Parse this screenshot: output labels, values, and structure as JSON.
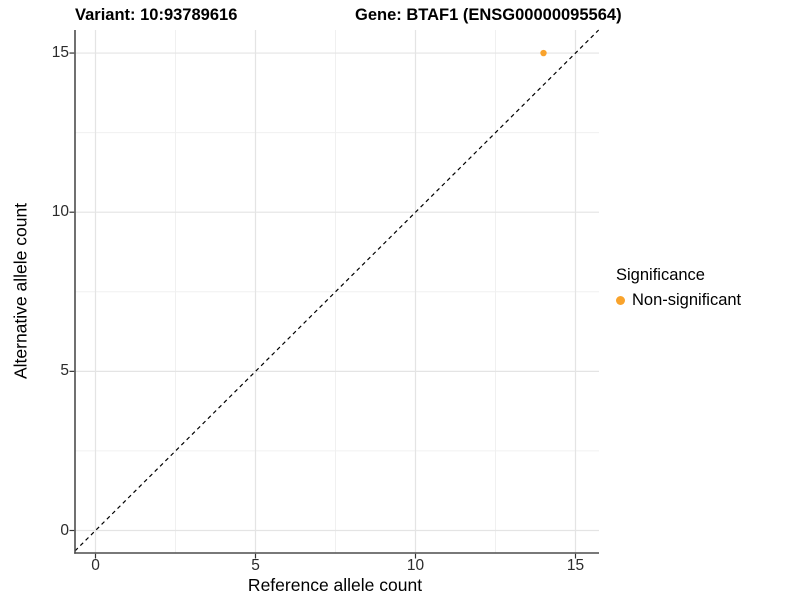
{
  "figure": {
    "title_variant": "Variant: 10:93789616",
    "title_gene": "Gene: BTAF1 (ENSG00000095564)"
  },
  "chart_data": {
    "type": "scatter",
    "title": "Variant: 10:93789616 — Gene: BTAF1 (ENSG00000095564)",
    "xlabel": "Reference allele count",
    "ylabel": "Alternative allele count",
    "xlim": [
      -0.75,
      15.75
    ],
    "ylim": [
      -0.75,
      15.75
    ],
    "x_ticks": [
      0,
      5,
      10,
      15
    ],
    "y_ticks": [
      0,
      5,
      10,
      15
    ],
    "x_minor_ticks": [
      2.5,
      7.5,
      12.5
    ],
    "y_minor_ticks": [
      2.5,
      7.5,
      12.5
    ],
    "grid": "major and minor gridlines, light gray on white, no top/right border",
    "series": [
      {
        "name": "Non-significant",
        "color": "#F9A32C",
        "points": [
          {
            "x": 14,
            "y": 15
          }
        ]
      }
    ],
    "reference_line": {
      "style": "dashed",
      "color": "#000000",
      "equation": "y = x"
    },
    "legend": {
      "position": "right",
      "title": "Significance",
      "entries": [
        {
          "label": "Non-significant",
          "color": "#F9A32C",
          "marker": "circle"
        }
      ]
    },
    "colors": {
      "point": "#F9A32C",
      "axis_line": "#4d4d4d",
      "tick_mark": "#333333",
      "grid_major": "#e4e4e4",
      "grid_minor": "#f0f0f0",
      "background": "#ffffff"
    }
  }
}
